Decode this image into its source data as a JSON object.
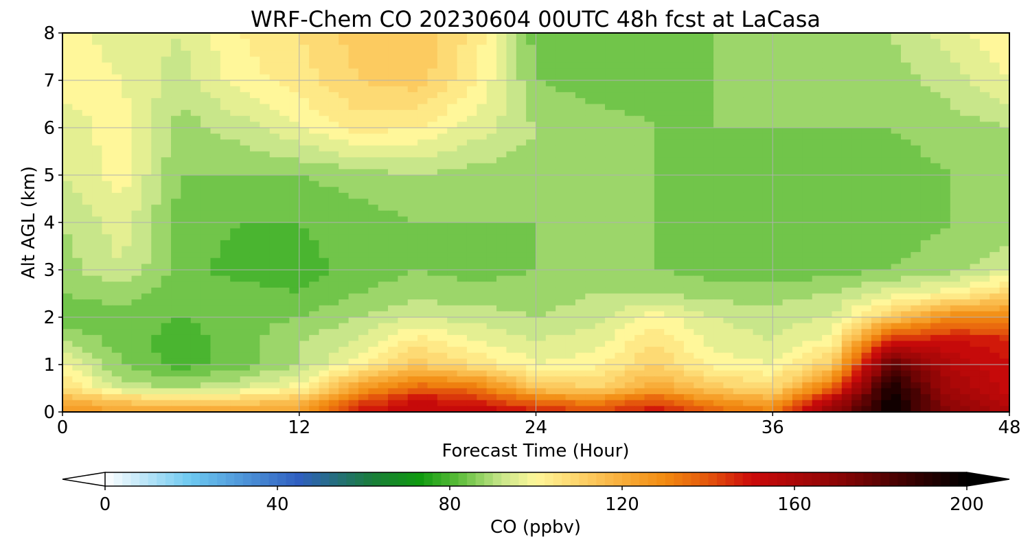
{
  "chart_data": {
    "type": "heatmap",
    "title": "WRF-Chem CO  20230604 00UTC 48h fcst at LaCasa",
    "xlabel": "Forecast Time (Hour)",
    "ylabel": "Alt AGL (km)",
    "xlim": [
      0,
      48
    ],
    "ylim": [
      0,
      8
    ],
    "xticks": [
      0,
      12,
      24,
      36,
      48
    ],
    "yticks": [
      0,
      1,
      2,
      3,
      4,
      5,
      6,
      7,
      8
    ],
    "grid": true,
    "x_hours": [
      0,
      3,
      6,
      9,
      12,
      15,
      18,
      21,
      24,
      27,
      30,
      33,
      36,
      39,
      42,
      45,
      48
    ],
    "y_km": [
      0,
      0.25,
      0.5,
      1,
      1.5,
      2,
      2.5,
      3,
      4,
      5,
      6,
      7,
      8
    ],
    "values_ppbv": [
      [
        128,
        122,
        122,
        122,
        124,
        148,
        154,
        154,
        148,
        144,
        150,
        138,
        132,
        168,
        198,
        170,
        160
      ],
      [
        118,
        112,
        108,
        110,
        114,
        140,
        150,
        146,
        134,
        128,
        140,
        126,
        120,
        156,
        198,
        166,
        156
      ],
      [
        108,
        92,
        90,
        94,
        100,
        124,
        138,
        134,
        114,
        110,
        122,
        112,
        108,
        136,
        196,
        162,
        152
      ],
      [
        98,
        86,
        80,
        84,
        90,
        100,
        112,
        106,
        98,
        100,
        110,
        100,
        98,
        112,
        180,
        158,
        150
      ],
      [
        90,
        84,
        80,
        84,
        90,
        94,
        104,
        98,
        94,
        96,
        106,
        96,
        94,
        100,
        148,
        150,
        148
      ],
      [
        82,
        84,
        82,
        84,
        86,
        90,
        94,
        92,
        90,
        92,
        100,
        94,
        92,
        94,
        112,
        130,
        130
      ],
      [
        86,
        88,
        84,
        84,
        82,
        86,
        88,
        88,
        88,
        90,
        90,
        88,
        88,
        90,
        96,
        100,
        110
      ],
      [
        88,
        94,
        84,
        80,
        80,
        84,
        86,
        84,
        86,
        86,
        86,
        84,
        84,
        84,
        86,
        88,
        94
      ],
      [
        90,
        96,
        84,
        82,
        82,
        84,
        86,
        86,
        86,
        86,
        86,
        84,
        84,
        84,
        84,
        86,
        86
      ],
      [
        94,
        100,
        86,
        86,
        86,
        88,
        90,
        88,
        88,
        86,
        86,
        84,
        84,
        84,
        84,
        86,
        88
      ],
      [
        96,
        100,
        88,
        92,
        98,
        104,
        102,
        96,
        90,
        88,
        86,
        86,
        86,
        86,
        86,
        88,
        90
      ],
      [
        100,
        98,
        92,
        100,
        104,
        110,
        112,
        102,
        86,
        84,
        84,
        86,
        86,
        86,
        88,
        92,
        98
      ],
      [
        100,
        96,
        94,
        102,
        106,
        112,
        114,
        104,
        84,
        84,
        84,
        86,
        88,
        88,
        90,
        96,
        102
      ]
    ],
    "colorbar": {
      "label": "CO  (ppbv)",
      "min": 0,
      "max": 200,
      "ticks": [
        0,
        40,
        80,
        120,
        160,
        200
      ],
      "extend": "both",
      "stops": [
        {
          "v": 0,
          "color": "#ffffff"
        },
        {
          "v": 20,
          "color": "#6cc8f0"
        },
        {
          "v": 45,
          "color": "#2f5fc0"
        },
        {
          "v": 62,
          "color": "#1a7d3a"
        },
        {
          "v": 73,
          "color": "#0f9a0f"
        },
        {
          "v": 82,
          "color": "#5bbd3a"
        },
        {
          "v": 92,
          "color": "#c8e68a"
        },
        {
          "v": 100,
          "color": "#fff79a"
        },
        {
          "v": 110,
          "color": "#fdd36a"
        },
        {
          "v": 120,
          "color": "#f8ad3a"
        },
        {
          "v": 130,
          "color": "#f28a10"
        },
        {
          "v": 140,
          "color": "#e4560c"
        },
        {
          "v": 150,
          "color": "#cc0a0a"
        },
        {
          "v": 170,
          "color": "#8c0505"
        },
        {
          "v": 190,
          "color": "#2a0000"
        },
        {
          "v": 200,
          "color": "#000000"
        }
      ]
    }
  }
}
